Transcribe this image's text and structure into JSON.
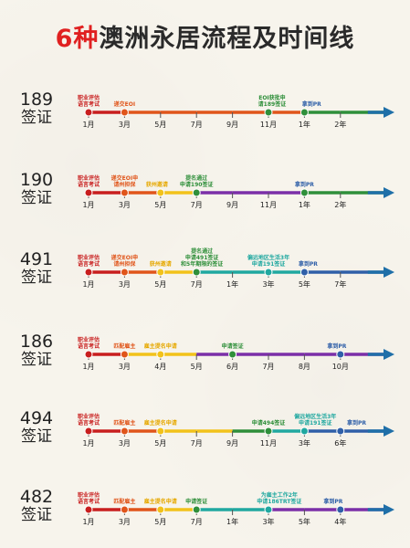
{
  "title": {
    "number": "6种",
    "text": "澳洲永居流程及时间线"
  },
  "colors": {
    "title_accent": "#e02020",
    "axis_arrow": "#1f6fa8"
  },
  "visas": [
    {
      "code": "189",
      "word": "签证",
      "ticks": [
        "1月",
        "3月",
        "5月",
        "7月",
        "9月",
        "11月",
        "1年",
        "2年"
      ],
      "segments": [
        "#c81e1e",
        "#e0551a",
        "#e0551a",
        "#e0551a",
        "#e0551a",
        "#e0551a",
        "#2f8f3a",
        "#2f8f3a"
      ],
      "dots": [
        0,
        1,
        5,
        6
      ],
      "dot_colors": [
        "#c81e1e",
        "#e0551a",
        "#2f8f3a",
        "#2f8f3a"
      ],
      "notes": [
        {
          "at": 0,
          "lines": [
            "职业评估",
            "语言考试"
          ],
          "color": "#c81e1e"
        },
        {
          "at": 1,
          "lines": [
            "递交EOI"
          ],
          "color": "#e0551a"
        },
        {
          "at": 5.1,
          "lines": [
            "EOI获批申",
            "请189签证"
          ],
          "color": "#2f8f3a"
        },
        {
          "at": 6.2,
          "lines": [
            "拿到PR"
          ],
          "color": "#2f5fa8"
        }
      ]
    },
    {
      "code": "190",
      "word": "签证",
      "ticks": [
        "1月",
        "3月",
        "5月",
        "7月",
        "9月",
        "11月",
        "1年",
        "2年"
      ],
      "segments": [
        "#c81e1e",
        "#e0551a",
        "#f2c21a",
        "#7b2fa8",
        "#7b2fa8",
        "#7b2fa8",
        "#2f8f3a",
        "#2f8f3a"
      ],
      "dots": [
        0,
        1,
        2,
        3,
        6
      ],
      "dot_colors": [
        "#c81e1e",
        "#e0551a",
        "#f2c21a",
        "#2f8f3a",
        "#2f8f3a"
      ],
      "notes": [
        {
          "at": 0,
          "lines": [
            "职业评估",
            "语言考试"
          ],
          "color": "#c81e1e"
        },
        {
          "at": 1,
          "lines": [
            "递交EOI申",
            "请州担保"
          ],
          "color": "#e0551a"
        },
        {
          "at": 1.9,
          "lines": [
            "",
            "获州邀请"
          ],
          "color": "#e6a800"
        },
        {
          "at": 3,
          "lines": [
            "提名通过",
            "申请190签证"
          ],
          "color": "#2f8f3a"
        },
        {
          "at": 6,
          "lines": [
            "",
            "拿到PR"
          ],
          "color": "#2f5fa8"
        }
      ]
    },
    {
      "code": "491",
      "word": "签证",
      "ticks": [
        "1月",
        "3月",
        "5月",
        "7月",
        "1年",
        "3年",
        "5年",
        "7年"
      ],
      "segments": [
        "#c81e1e",
        "#e0551a",
        "#f2c21a",
        "#20a8a0",
        "#20a8a0",
        "#20a8a0",
        "#2f5fa8",
        "#2f5fa8"
      ],
      "dots": [
        0,
        1,
        2,
        3,
        5,
        6
      ],
      "dot_colors": [
        "#c81e1e",
        "#e0551a",
        "#f2c21a",
        "#2f8f3a",
        "#20a8a0",
        "#2f5fa8"
      ],
      "notes": [
        {
          "at": 0,
          "lines": [
            "职业评估",
            "语言考试"
          ],
          "color": "#c81e1e"
        },
        {
          "at": 1,
          "lines": [
            "递交EOI申",
            "请州担保"
          ],
          "color": "#e0551a"
        },
        {
          "at": 2,
          "lines": [
            "",
            "获州邀请"
          ],
          "color": "#e6a800"
        },
        {
          "at": 3.15,
          "lines": [
            "提名通过",
            "申请491签证",
            "和5年期限的签证"
          ],
          "color": "#2f8f3a"
        },
        {
          "at": 5,
          "lines": [
            "偏远地区生活3年",
            "申请191签证"
          ],
          "color": "#20a8a0"
        },
        {
          "at": 6.1,
          "lines": [
            "",
            "拿到PR"
          ],
          "color": "#2f5fa8"
        }
      ]
    },
    {
      "code": "186",
      "word": "签证",
      "ticks": [
        "1月",
        "3月",
        "4月",
        "5月",
        "6月",
        "7月",
        "8月",
        "10月"
      ],
      "segments": [
        "#c81e1e",
        "#f2c21a",
        "#f2c21a",
        "#7b2fa8",
        "#7b2fa8",
        "#7b2fa8",
        "#7b2fa8",
        "#7b2fa8"
      ],
      "dots": [
        0,
        1,
        2,
        4,
        7
      ],
      "dot_colors": [
        "#c81e1e",
        "#e0551a",
        "#f2c21a",
        "#2f8f3a",
        "#2f5fa8"
      ],
      "notes": [
        {
          "at": 0,
          "lines": [
            "职业评估",
            "语言考试"
          ],
          "color": "#c81e1e"
        },
        {
          "at": 1,
          "lines": [
            "匹配雇主"
          ],
          "color": "#e0551a"
        },
        {
          "at": 2,
          "lines": [
            "雇主提名申请"
          ],
          "color": "#e6a800"
        },
        {
          "at": 4,
          "lines": [
            "申请签证"
          ],
          "color": "#2f8f3a"
        },
        {
          "at": 6.9,
          "lines": [
            "拿到PR"
          ],
          "color": "#2f5fa8"
        }
      ]
    },
    {
      "code": "494",
      "word": "签证",
      "ticks": [
        "1月",
        "3月",
        "5月",
        "7月",
        "9月",
        "11月",
        "3年",
        "6年"
      ],
      "segments": [
        "#c81e1e",
        "#e0551a",
        "#f2c21a",
        "#f2c21a",
        "#2f8f3a",
        "#20a8a0",
        "#2f5fa8",
        "#2f5fa8"
      ],
      "dots": [
        0,
        1,
        2,
        5,
        6,
        7
      ],
      "dot_colors": [
        "#c81e1e",
        "#e0551a",
        "#f2c21a",
        "#2f8f3a",
        "#20a8a0",
        "#2f5fa8"
      ],
      "notes": [
        {
          "at": 0,
          "lines": [
            "职业评估",
            "语言考试"
          ],
          "color": "#c81e1e"
        },
        {
          "at": 1,
          "lines": [
            "匹配雇主"
          ],
          "color": "#e0551a"
        },
        {
          "at": 2,
          "lines": [
            "雇主提名申请"
          ],
          "color": "#e6a800"
        },
        {
          "at": 5,
          "lines": [
            "",
            "申请494签证"
          ],
          "color": "#2f8f3a"
        },
        {
          "at": 6.3,
          "lines": [
            "偏远地区生活3年",
            "申请191签证"
          ],
          "color": "#20a8a0"
        },
        {
          "at": 7.45,
          "lines": [
            "",
            "拿到PR"
          ],
          "color": "#2f5fa8"
        }
      ]
    },
    {
      "code": "482",
      "word": "签证",
      "ticks": [
        "1月",
        "3月",
        "5月",
        "7月",
        "1年",
        "3年",
        "5年",
        "4年"
      ],
      "segments": [
        "#c81e1e",
        "#e0551a",
        "#f2c21a",
        "#20a8a0",
        "#20a8a0",
        "#7b2fa8",
        "#7b2fa8",
        "#7b2fa8"
      ],
      "dots": [
        0,
        1,
        2,
        3,
        5,
        7
      ],
      "dot_colors": [
        "#c81e1e",
        "#e0551a",
        "#f2c21a",
        "#2f8f3a",
        "#20a8a0",
        "#2f5fa8"
      ],
      "notes": [
        {
          "at": 0,
          "lines": [
            "职业评估",
            "语言考试"
          ],
          "color": "#c81e1e"
        },
        {
          "at": 1,
          "lines": [
            "匹配雇主"
          ],
          "color": "#e0551a"
        },
        {
          "at": 2,
          "lines": [
            "雇主提名申请"
          ],
          "color": "#e6a800"
        },
        {
          "at": 3,
          "lines": [
            "申请签证"
          ],
          "color": "#2f8f3a"
        },
        {
          "at": 5.3,
          "lines": [
            "为雇主工作2年",
            "申请186TRT签证"
          ],
          "color": "#20a8a0"
        },
        {
          "at": 6.8,
          "lines": [
            "拿到PR"
          ],
          "color": "#2f5fa8"
        }
      ]
    }
  ]
}
